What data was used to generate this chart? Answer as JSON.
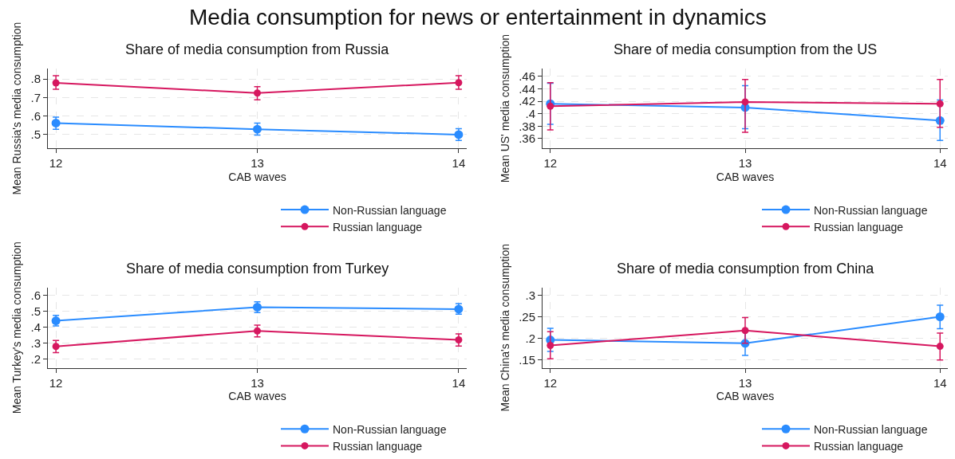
{
  "chart_data": [
    {
      "type": "line",
      "title": "Share of media consumption from Russia",
      "xlabel": "CAB waves",
      "ylabel": "Mean Russia's media consumption",
      "annotations": [
        "Media consumption for news or entertainment in dynamics"
      ],
      "x": [
        12,
        13,
        14
      ],
      "xlim": [
        11.96,
        14.04
      ],
      "xticks": [
        12,
        13,
        14
      ],
      "ylim": [
        0.425,
        0.857
      ],
      "yticks": [
        {
          "value": 0.5,
          "label": ".5"
        },
        {
          "value": 0.6,
          "label": ".6"
        },
        {
          "value": 0.7,
          "label": ".7"
        },
        {
          "value": 0.8,
          "label": ".8"
        }
      ],
      "grid": true,
      "legend": "bottom right",
      "marker": "circle",
      "line_style": "solid",
      "series": [
        {
          "name": "Non-Russian language",
          "color": "#2a8cff",
          "values": [
            0.562,
            0.529,
            0.5
          ],
          "errors": [
            [
              0.529,
              0.594
            ],
            [
              0.497,
              0.562
            ],
            [
              0.468,
              0.532
            ]
          ]
        },
        {
          "name": "Russian language",
          "color": "#d6175f",
          "values": [
            0.779,
            0.724,
            0.78
          ],
          "errors": [
            [
              0.744,
              0.817
            ],
            [
              0.688,
              0.758
            ],
            [
              0.744,
              0.817
            ]
          ]
        }
      ]
    },
    {
      "type": "line",
      "title": "Share of media consumption from the US",
      "xlabel": "CAB waves",
      "ylabel": "Mean US' media consumption",
      "x": [
        12,
        13,
        14
      ],
      "xlim": [
        11.96,
        14.04
      ],
      "xticks": [
        12,
        13,
        14
      ],
      "ylim": [
        0.344,
        0.473
      ],
      "yticks": [
        {
          "value": 0.36,
          "label": ".36"
        },
        {
          "value": 0.38,
          "label": ".38"
        },
        {
          "value": 0.4,
          "label": ".4"
        },
        {
          "value": 0.42,
          "label": ".42"
        },
        {
          "value": 0.44,
          "label": ".44"
        },
        {
          "value": 0.46,
          "label": ".46"
        }
      ],
      "grid": true,
      "legend": "bottom right",
      "marker": "circle",
      "line_style": "solid",
      "series": [
        {
          "name": "Non-Russian language",
          "color": "#2a8cff",
          "values": [
            0.416,
            0.41,
            0.389
          ],
          "errors": [
            [
              0.383,
              0.449
            ],
            [
              0.376,
              0.445
            ],
            [
              0.357,
              0.422
            ]
          ]
        },
        {
          "name": "Russian language",
          "color": "#d6175f",
          "values": [
            0.412,
            0.419,
            0.416
          ],
          "errors": [
            [
              0.374,
              0.45
            ],
            [
              0.37,
              0.455
            ],
            [
              0.378,
              0.455
            ]
          ]
        }
      ]
    },
    {
      "type": "line",
      "title": "Share of media consumption from Turkey",
      "xlabel": "CAB waves",
      "ylabel": "Mean Turkey's media consumption",
      "x": [
        12,
        13,
        14
      ],
      "xlim": [
        11.96,
        14.04
      ],
      "xticks": [
        12,
        13,
        14
      ],
      "ylim": [
        0.147,
        0.647
      ],
      "yticks": [
        {
          "value": 0.2,
          "label": ".2"
        },
        {
          "value": 0.3,
          "label": ".3"
        },
        {
          "value": 0.4,
          "label": ".4"
        },
        {
          "value": 0.5,
          "label": ".5"
        },
        {
          "value": 0.6,
          "label": ".6"
        }
      ],
      "grid": true,
      "legend": "bottom right",
      "marker": "circle",
      "line_style": "solid",
      "series": [
        {
          "name": "Non-Russian language",
          "color": "#2a8cff",
          "values": [
            0.44,
            0.525,
            0.513
          ],
          "errors": [
            [
              0.408,
              0.474
            ],
            [
              0.491,
              0.558
            ],
            [
              0.481,
              0.547
            ]
          ]
        },
        {
          "name": "Russian language",
          "color": "#d6175f",
          "values": [
            0.28,
            0.377,
            0.321
          ],
          "errors": [
            [
              0.242,
              0.317
            ],
            [
              0.34,
              0.413
            ],
            [
              0.283,
              0.358
            ]
          ]
        }
      ]
    },
    {
      "type": "line",
      "title": "Share of media consumption from China",
      "xlabel": "CAB waves",
      "ylabel": "Mean China's media consumption",
      "x": [
        12,
        13,
        14
      ],
      "xlim": [
        11.96,
        14.04
      ],
      "xticks": [
        12,
        13,
        14
      ],
      "ylim": [
        0.131,
        0.318
      ],
      "yticks": [
        {
          "value": 0.15,
          "label": ".15"
        },
        {
          "value": 0.2,
          "label": ".2"
        },
        {
          "value": 0.25,
          "label": ".25"
        },
        {
          "value": 0.3,
          "label": ".3"
        }
      ],
      "grid": true,
      "legend": "bottom right",
      "marker": "circle",
      "line_style": "solid",
      "series": [
        {
          "name": "Non-Russian language",
          "color": "#2a8cff",
          "values": [
            0.196,
            0.188,
            0.25
          ],
          "errors": [
            [
              0.169,
              0.223
            ],
            [
              0.16,
              0.216
            ],
            [
              0.222,
              0.277
            ]
          ]
        },
        {
          "name": "Russian language",
          "color": "#d6175f",
          "values": [
            0.183,
            0.218,
            0.181
          ],
          "errors": [
            [
              0.152,
              0.215
            ],
            [
              0.188,
              0.248
            ],
            [
              0.149,
              0.212
            ]
          ]
        }
      ]
    }
  ]
}
